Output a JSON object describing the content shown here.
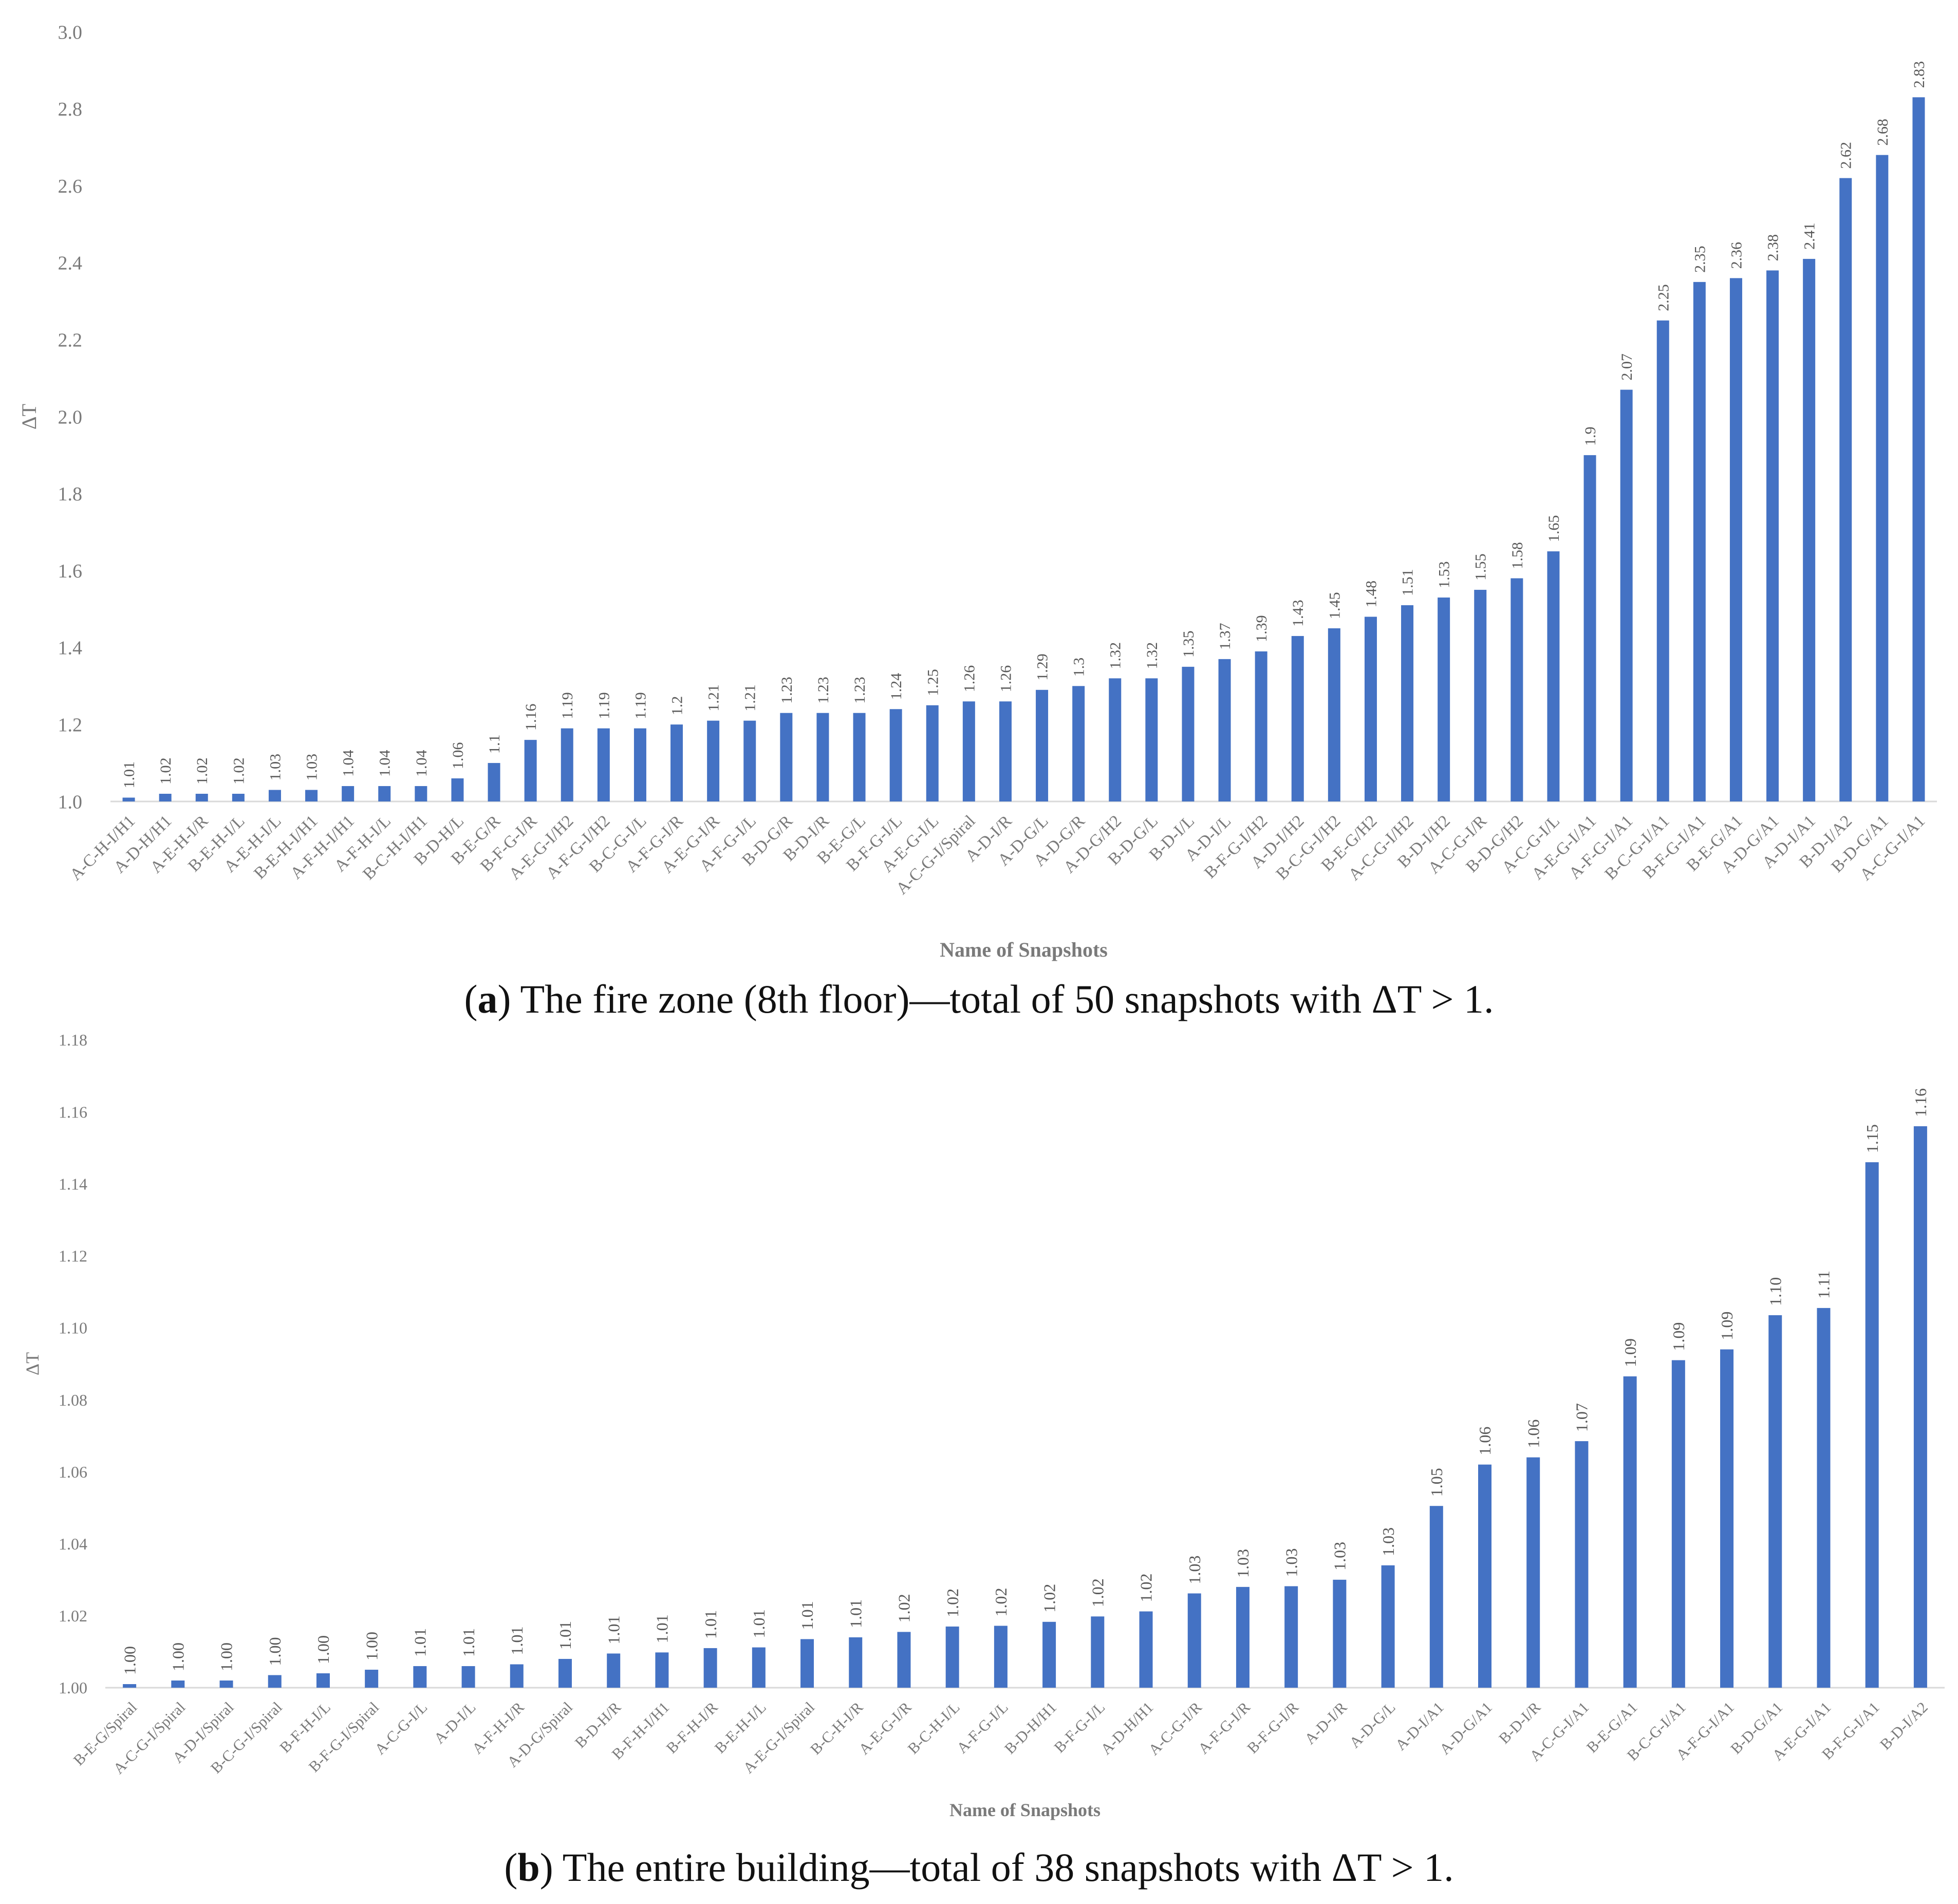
{
  "figure": {
    "caption_a_letter": "a",
    "caption_a_text": "The fire zone (8th floor)—total of 50 snapshots with ΔT > 1.",
    "caption_b_letter": "b",
    "caption_b_text": "The entire building—total of 38 snapshots with ΔT > 1."
  },
  "chart_data": [
    {
      "type": "bar",
      "title": "",
      "xlabel": "Name of Snapshots",
      "ylabel": "ΔT",
      "ylim": [
        1.0,
        3.0
      ],
      "yticks": [
        "1.0",
        "1.2",
        "1.4",
        "1.6",
        "1.8",
        "2.0",
        "2.2",
        "2.4",
        "2.6",
        "2.8",
        "3.0"
      ],
      "bar_color": "#4472c4",
      "categories": [
        "A-C-H-I/H1",
        "A-D-H/H1",
        "A-E-H-I/R",
        "B-E-H-I/L",
        "A-E-H-I/L",
        "B-E-H-I/H1",
        "A-F-H-I/H1",
        "A-F-H-I/L",
        "B-C-H-I/H1",
        "B-D-H/L",
        "B-E-G/R",
        "B-F-G-I/R",
        "A-E-G-I/H2",
        "A-F-G-I/H2",
        "B-C-G-I/L",
        "A-F-G-I/R",
        "A-E-G-I/R",
        "A-F-G-I/L",
        "B-D-G/R",
        "B-D-I/R",
        "B-E-G/L",
        "B-F-G-I/L",
        "A-E-G-I/L",
        "A-C-G-I/Spiral",
        "A-D-I/R",
        "A-D-G/L",
        "A-D-G/R",
        "A-D-G/H2",
        "B-D-G/L",
        "B-D-I/L",
        "A-D-I/L",
        "B-F-G-I/H2",
        "A-D-I/H2",
        "B-C-G-I/H2",
        "B-E-G/H2",
        "A-C-G-I/H2",
        "B-D-I/H2",
        "A-C-G-I/R",
        "B-D-G/H2",
        "A-C-G-I/L",
        "A-E-G-I/A1",
        "A-F-G-I/A1",
        "B-C-G-I/A1",
        "B-F-G-I/A1",
        "B-E-G/A1",
        "A-D-G/A1",
        "A-D-I/A1",
        "B-D-I/A2",
        "B-D-G/A1",
        "A-C-G-I/A1"
      ],
      "values": [
        1.01,
        1.02,
        1.02,
        1.02,
        1.03,
        1.03,
        1.04,
        1.04,
        1.04,
        1.06,
        1.1,
        1.16,
        1.19,
        1.19,
        1.19,
        1.2,
        1.21,
        1.21,
        1.23,
        1.23,
        1.23,
        1.24,
        1.25,
        1.26,
        1.26,
        1.29,
        1.3,
        1.32,
        1.32,
        1.35,
        1.37,
        1.39,
        1.43,
        1.45,
        1.48,
        1.51,
        1.53,
        1.55,
        1.58,
        1.65,
        1.9,
        2.07,
        2.25,
        2.35,
        2.36,
        2.38,
        2.41,
        2.62,
        2.68,
        2.83
      ],
      "labels": [
        "1.01",
        "1.02",
        "1.02",
        "1.02",
        "1.03",
        "1.03",
        "1.04",
        "1.04",
        "1.04",
        "1.06",
        "1.1",
        "1.16",
        "1.19",
        "1.19",
        "1.19",
        "1.2",
        "1.21",
        "1.21",
        "1.23",
        "1.23",
        "1.23",
        "1.24",
        "1.25",
        "1.26",
        "1.26",
        "1.29",
        "1.3",
        "1.32",
        "1.32",
        "1.35",
        "1.37",
        "1.39",
        "1.43",
        "1.45",
        "1.48",
        "1.51",
        "1.53",
        "1.55",
        "1.58",
        "1.65",
        "1.9",
        "2.07",
        "2.25",
        "2.35",
        "2.36",
        "2.38",
        "2.41",
        "2.62",
        "2.68",
        "2.83"
      ]
    },
    {
      "type": "bar",
      "title": "",
      "xlabel": "Name of Snapshots",
      "ylabel": "ΔT",
      "ylim": [
        1.0,
        1.18
      ],
      "yticks": [
        "1.00",
        "1.02",
        "1.04",
        "1.06",
        "1.08",
        "1.10",
        "1.12",
        "1.14",
        "1.16",
        "1.18"
      ],
      "bar_color": "#4472c4",
      "categories": [
        "B-E-G/Spiral",
        "A-C-G-I/Spiral",
        "A-D-I/Spiral",
        "B-C-G-I/Spiral",
        "B-F-H-I/L",
        "B-F-G-I/Spiral",
        "A-C-G-I/L",
        "A-D-I/L",
        "A-F-H-I/R",
        "A-D-G/Spiral",
        "B-D-H/R",
        "B-F-H-I/H1",
        "B-F-H-I/R",
        "B-E-H-I/L",
        "A-E-G-I/Spiral",
        "B-C-H-I/R",
        "A-E-G-I/R",
        "B-C-H-I/L",
        "A-F-G-I/L",
        "B-D-H/H1",
        "B-F-G-I/L",
        "A-D-H/H1",
        "A-C-G-I/R",
        "A-F-G-I/R",
        "B-F-G-I/R",
        "A-D-I/R",
        "A-D-G/L",
        "A-D-I/A1",
        "A-D-G/A1",
        "B-D-I/R",
        "A-C-G-I/A1",
        "B-E-G/A1",
        "B-C-G-I/A1",
        "A-F-G-I/A1",
        "B-D-G/A1",
        "A-E-G-I/A1",
        "B-F-G-I/A1",
        "B-D-I/A2"
      ],
      "values": [
        1.001,
        1.002,
        1.002,
        1.0035,
        1.004,
        1.005,
        1.006,
        1.006,
        1.0065,
        1.008,
        1.0095,
        1.0098,
        1.011,
        1.0112,
        1.0135,
        1.014,
        1.0155,
        1.017,
        1.0172,
        1.0183,
        1.0198,
        1.0212,
        1.0262,
        1.028,
        1.0282,
        1.03,
        1.034,
        1.0505,
        1.062,
        1.064,
        1.0685,
        1.0865,
        1.091,
        1.094,
        1.1035,
        1.1055,
        1.146,
        1.156
      ],
      "labels": [
        "1.00",
        "1.00",
        "1.00",
        "1.00",
        "1.00",
        "1.00",
        "1.01",
        "1.01",
        "1.01",
        "1.01",
        "1.01",
        "1.01",
        "1.01",
        "1.01",
        "1.01",
        "1.01",
        "1.02",
        "1.02",
        "1.02",
        "1.02",
        "1.02",
        "1.02",
        "1.03",
        "1.03",
        "1.03",
        "1.03",
        "1.03",
        "1.05",
        "1.06",
        "1.06",
        "1.07",
        "1.09",
        "1.09",
        "1.09",
        "1.10",
        "1.11",
        "1.15",
        "1.16"
      ]
    }
  ]
}
